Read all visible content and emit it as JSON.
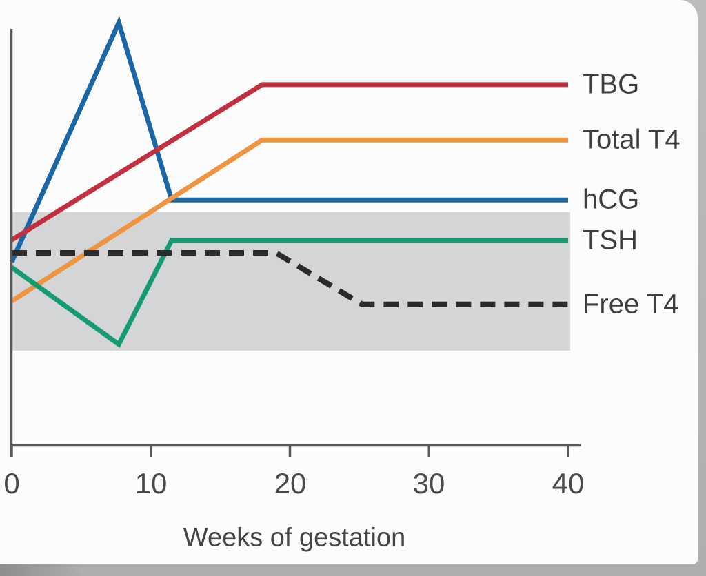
{
  "page": {
    "kind": "scanned textbook figure",
    "card_color": "#fcfcfd",
    "page_edge_color": "#b3b3b4"
  },
  "chart_data": {
    "type": "line",
    "title": "",
    "xlabel": "Weeks of gestation",
    "ylabel": "",
    "x_unit": "weeks",
    "xlim": [
      0,
      40
    ],
    "x_ticks": [
      0,
      10,
      20,
      30,
      40
    ],
    "y_axis_labeled": false,
    "y_unit": "relative hormone level (arbitrary units, percent of plot height)",
    "grid": false,
    "legend_position": "right of line ends",
    "axis_color": "#5a5a5a",
    "tick_label_color": "#4a4a4a",
    "normal_range_band": {
      "description": "shaded normal (nonpregnant) reference range",
      "x_range": [
        0,
        40
      ],
      "level_range": [
        22.7,
        56.0
      ],
      "color": "#d4d5d6"
    },
    "series": [
      {
        "name": "TBG",
        "color": "#c22f3e",
        "style": "solid",
        "points": [
          [
            0,
            49.3
          ],
          [
            18,
            86.6
          ],
          [
            40,
            86.6
          ]
        ]
      },
      {
        "name": "Total T4",
        "color": "#ef9440",
        "style": "solid",
        "points": [
          [
            0,
            34.6
          ],
          [
            18,
            73.3
          ],
          [
            40,
            73.3
          ]
        ]
      },
      {
        "name": "hCG",
        "color": "#1b67a5",
        "style": "solid",
        "points": [
          [
            0,
            44.0
          ],
          [
            7.7,
            101.5
          ],
          [
            11.5,
            58.9
          ],
          [
            40,
            58.9
          ]
        ]
      },
      {
        "name": "TSH",
        "color": "#169a72",
        "style": "solid",
        "points": [
          [
            0,
            42.7
          ],
          [
            7.7,
            24.2
          ],
          [
            11.5,
            49.2
          ],
          [
            40,
            49.2
          ]
        ]
      },
      {
        "name": "Free T4",
        "color": "#2b2b2b",
        "style": "dashed",
        "points": [
          [
            0,
            46.2
          ],
          [
            19,
            46.2
          ],
          [
            25.2,
            33.8
          ],
          [
            40,
            33.8
          ]
        ]
      }
    ]
  }
}
